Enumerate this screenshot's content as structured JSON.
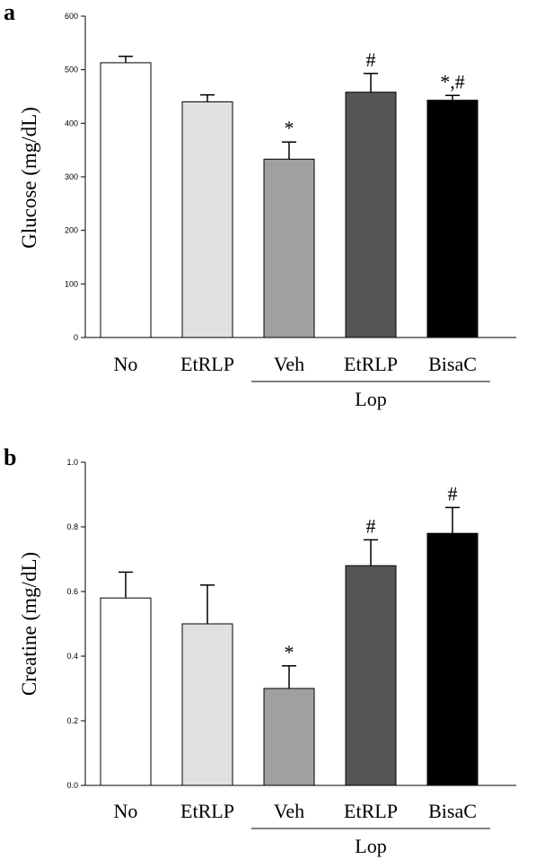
{
  "chart_data": [
    {
      "type": "bar",
      "panel": "a",
      "ylabel": "Glucose (mg/dL)",
      "ylim": [
        0,
        600
      ],
      "yticks": [
        "0",
        "100",
        "200",
        "300",
        "400",
        "500",
        "600"
      ],
      "categories": [
        "No",
        "EtRLP",
        "Veh",
        "EtRLP",
        "BisaC"
      ],
      "values": [
        513,
        440,
        333,
        458,
        443
      ],
      "errors": [
        12,
        13,
        32,
        35,
        9
      ],
      "significance": [
        "",
        "",
        "*",
        "#",
        "*,#"
      ],
      "colors": [
        "#ffffff",
        "#e0e0e0",
        "#a0a0a0",
        "#555555",
        "#000000"
      ],
      "group_label": "Lop",
      "group_span": [
        2,
        4
      ]
    },
    {
      "type": "bar",
      "panel": "b",
      "ylabel": "Creatine (mg/dL)",
      "ylim": [
        0,
        1
      ],
      "yticks": [
        "0.0",
        "0.2",
        "0.4",
        "0.6",
        "0.8",
        "1.0"
      ],
      "categories": [
        "No",
        "EtRLP",
        "Veh",
        "EtRLP",
        "BisaC"
      ],
      "values": [
        0.58,
        0.5,
        0.3,
        0.68,
        0.78
      ],
      "errors": [
        0.08,
        0.12,
        0.07,
        0.08,
        0.08
      ],
      "significance": [
        "",
        "",
        "*",
        "#",
        "#"
      ],
      "colors": [
        "#ffffff",
        "#e0e0e0",
        "#a0a0a0",
        "#555555",
        "#000000"
      ],
      "group_label": "Lop",
      "group_span": [
        2,
        4
      ]
    }
  ]
}
